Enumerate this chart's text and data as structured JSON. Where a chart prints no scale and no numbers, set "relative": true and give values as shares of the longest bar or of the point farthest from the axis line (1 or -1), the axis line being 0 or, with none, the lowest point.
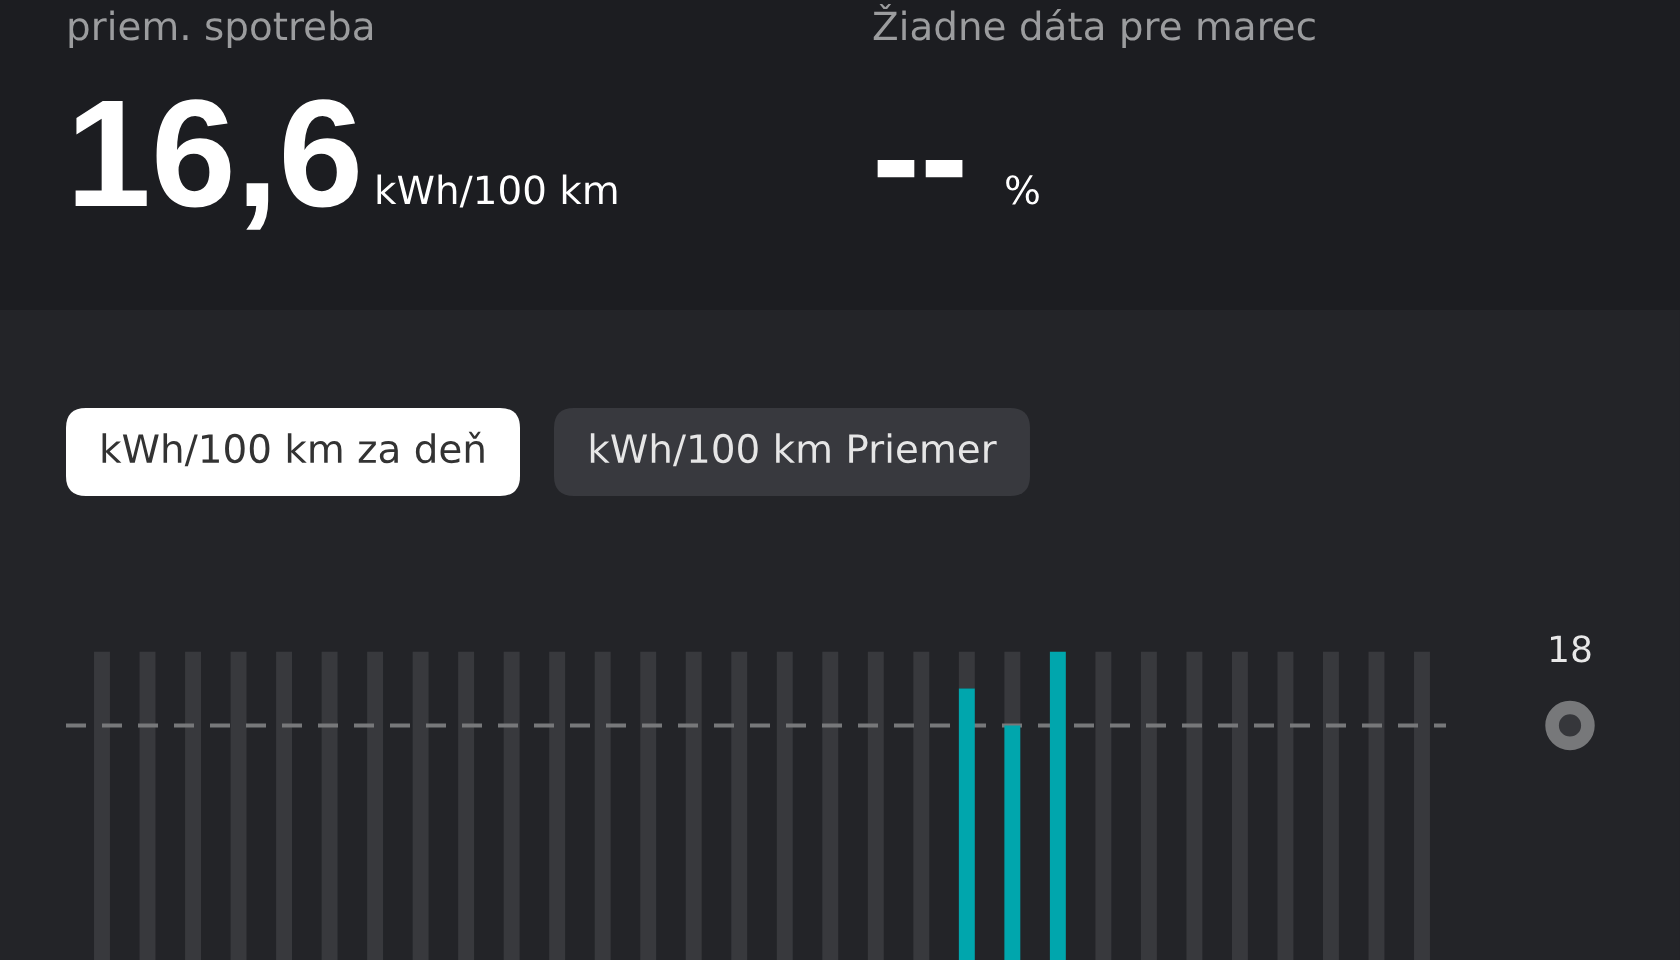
{
  "chart_data": {
    "type": "bar",
    "relative": true,
    "stacked": true,
    "categories": [
      null,
      null,
      null,
      null,
      null,
      null,
      null,
      null,
      null,
      null,
      null,
      null,
      null,
      null,
      null,
      null,
      null,
      null,
      null,
      null,
      null,
      null,
      null,
      null,
      null,
      null,
      null,
      null,
      null,
      null
    ],
    "series": [
      {
        "color": "#00a6ad",
        "values": [
          null,
          null,
          null,
          null,
          null,
          null,
          null,
          null,
          null,
          null,
          null,
          null,
          null,
          null,
          null,
          null,
          null,
          null,
          null,
          0.88,
          0.76,
          1.0,
          null,
          null,
          null,
          null,
          null,
          null,
          null,
          null
        ]
      },
      {
        "color": "#38393d",
        "values": [
          1,
          1,
          1,
          1,
          1,
          1,
          1,
          1,
          1,
          1,
          1,
          1,
          1,
          1,
          1,
          1,
          1,
          1,
          1,
          0.12,
          0.24,
          null,
          1,
          1,
          1,
          1,
          1,
          1,
          1,
          1
        ]
      }
    ],
    "ref_lines": [
      {
        "axis": "y",
        "value": 0.76,
        "color": "#77787a",
        "line_style": "dashed"
      }
    ],
    "annotations": [
      "priem. spotreba",
      "16,6",
      "kWh/100 km",
      "Žiadne dáta pre marec",
      "--",
      "%",
      "kWh/100 km za deň",
      "kWh/100 km Priemer",
      "18"
    ]
  }
}
